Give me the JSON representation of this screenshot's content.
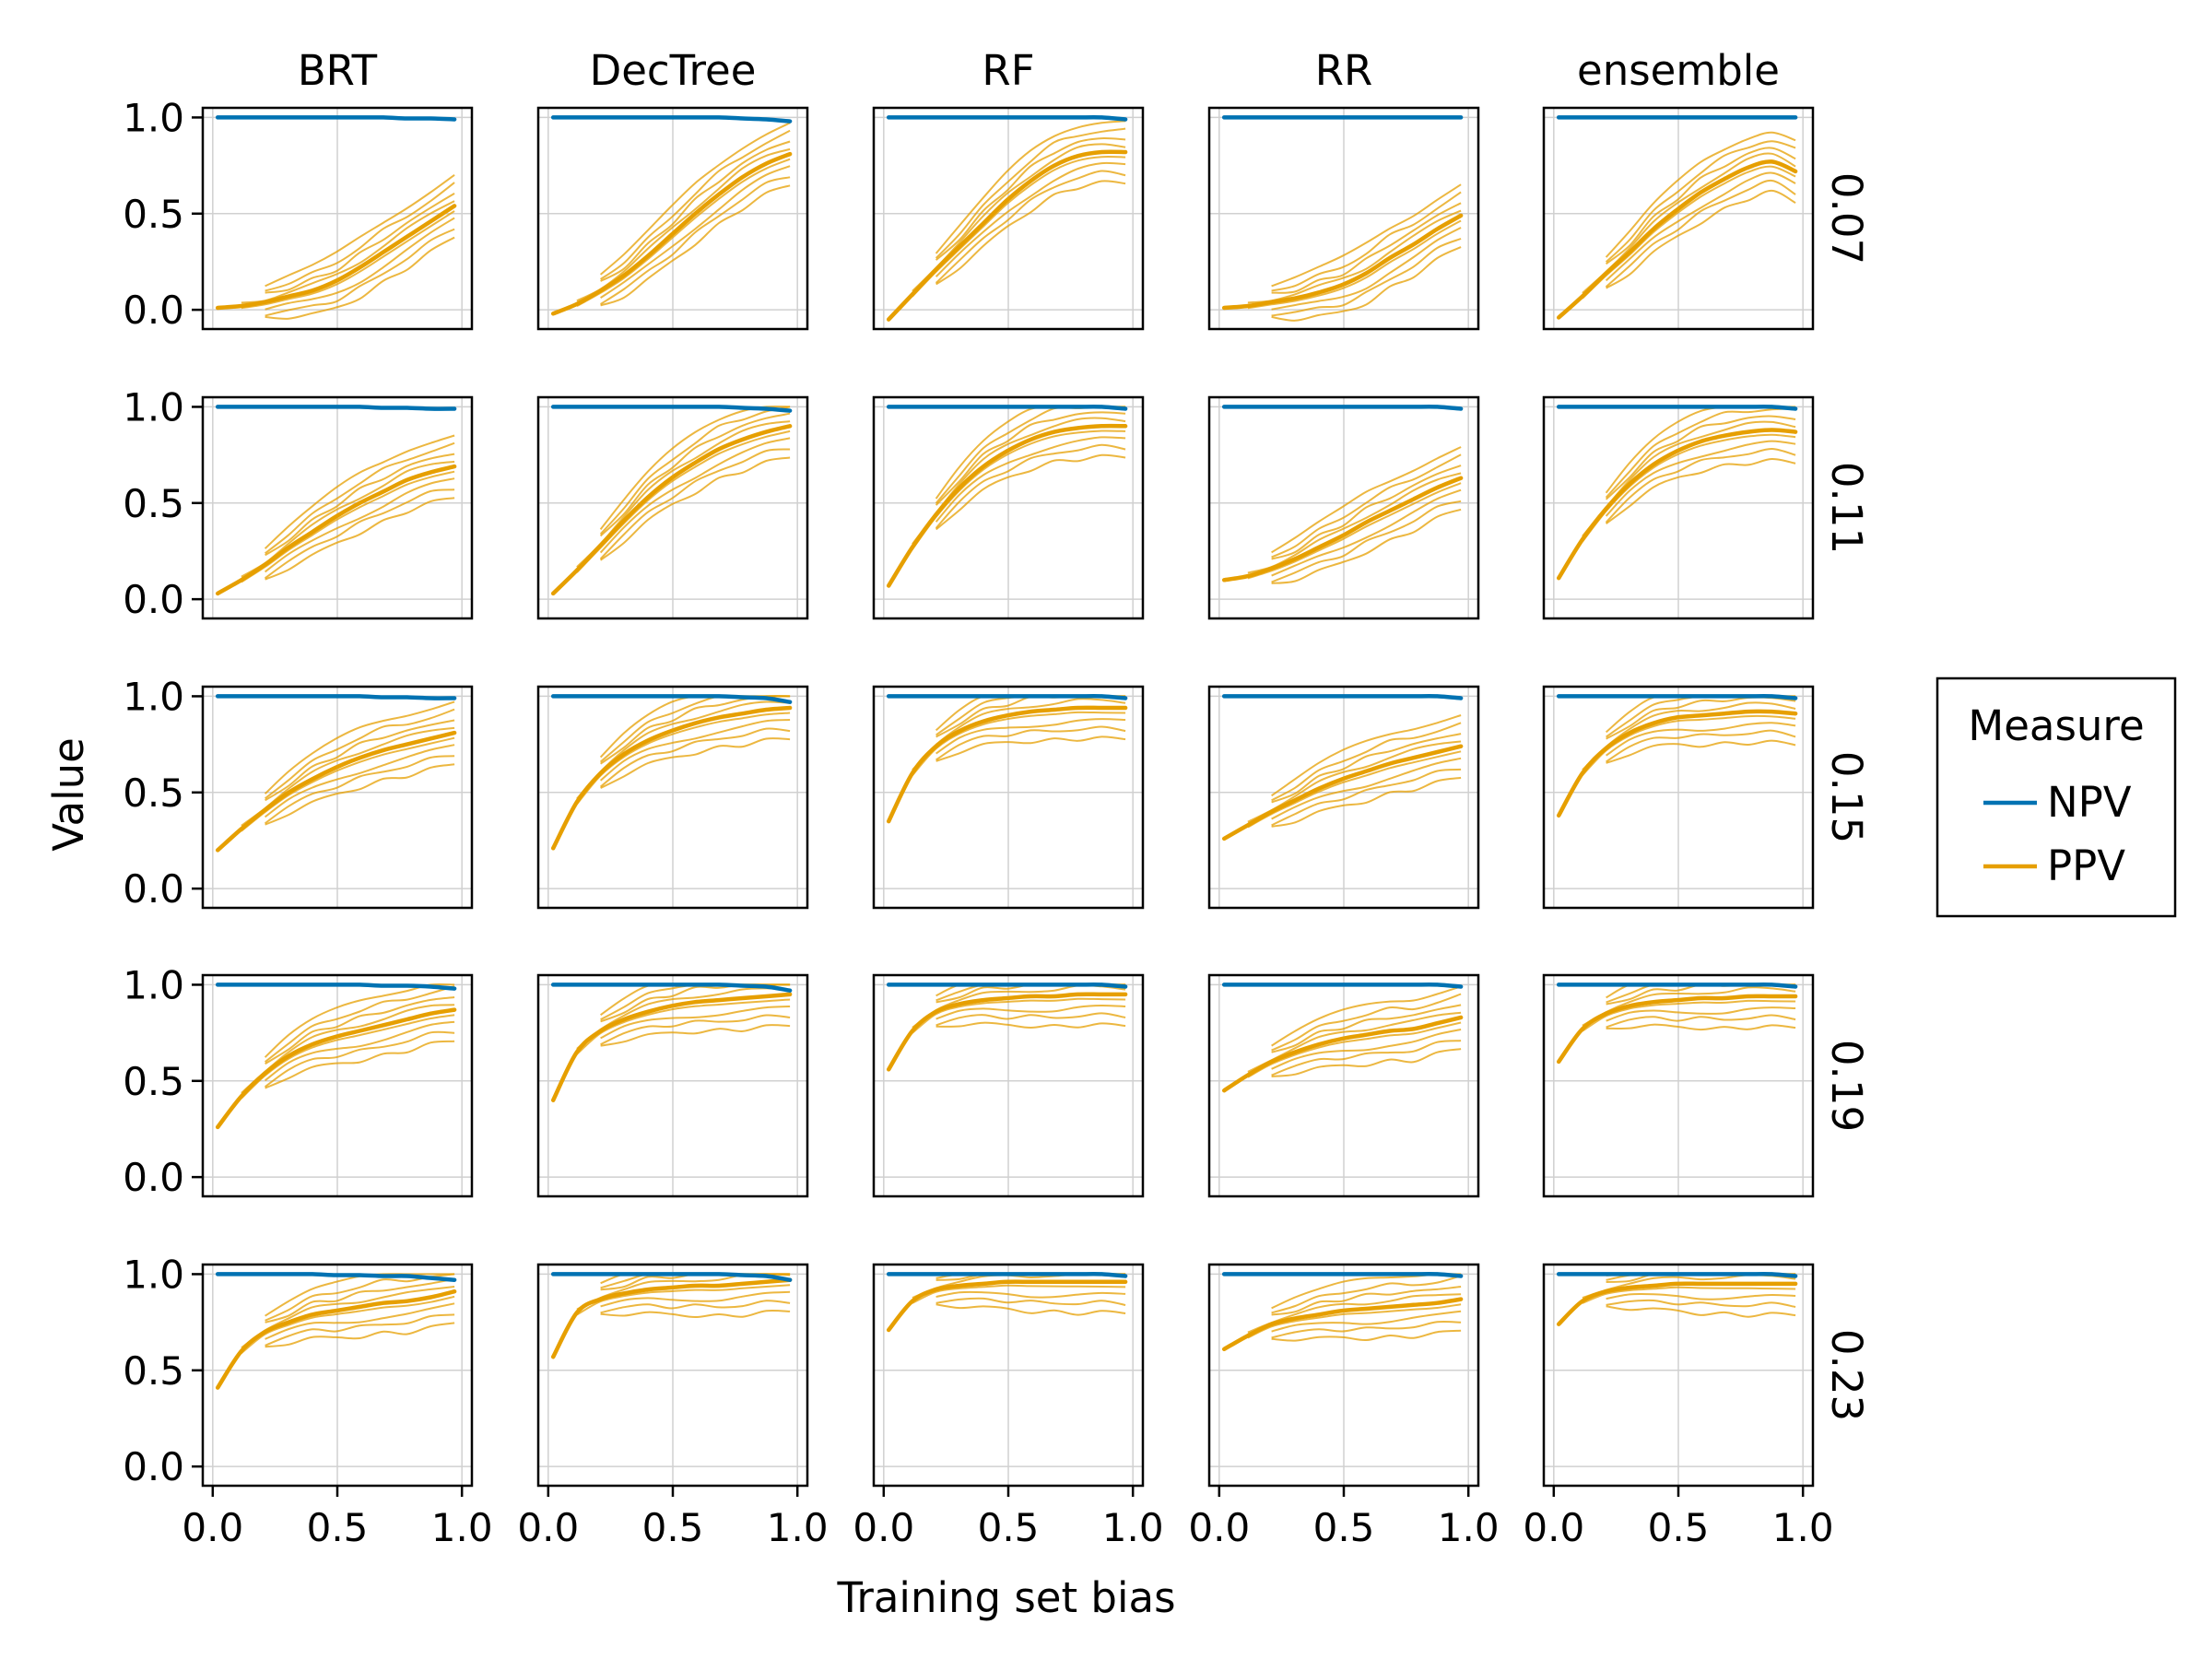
{
  "chart_data": {
    "type": "line",
    "description_free": true,
    "facet_columns": [
      "BRT",
      "DecTree",
      "RF",
      "RR",
      "ensemble"
    ],
    "facet_rows": [
      "0.07",
      "0.11",
      "0.15",
      "0.19",
      "0.23"
    ],
    "xlabel": "Training set bias",
    "ylabel": "Value",
    "xlim": [
      0.0,
      1.0
    ],
    "ylim": [
      0.0,
      1.0
    ],
    "xticks": [
      "0.0",
      "0.5",
      "1.0"
    ],
    "yticks": [
      "0.0",
      "0.5",
      "1.0"
    ],
    "grid": true,
    "legend": {
      "title": "Measure",
      "placement": "right",
      "entries": [
        {
          "name": "NPV",
          "color": "#0072b2"
        },
        {
          "name": "PPV",
          "color": "#e69f00"
        }
      ]
    },
    "x": [
      0.0,
      0.1,
      0.2,
      0.3,
      0.4,
      0.5,
      0.6,
      0.7,
      0.8,
      0.9,
      1.0
    ],
    "panels": [
      {
        "row": "0.07",
        "col": "BRT",
        "npv": [
          1.0,
          1.0,
          1.0,
          1.0,
          1.0,
          1.0,
          1.0,
          1.0,
          0.995,
          0.995,
          0.99
        ],
        "ppv": [
          0.01,
          0.02,
          0.04,
          0.07,
          0.1,
          0.15,
          0.22,
          0.3,
          0.38,
          0.46,
          0.54
        ]
      },
      {
        "row": "0.07",
        "col": "DecTree",
        "npv": [
          1.0,
          1.0,
          1.0,
          1.0,
          1.0,
          1.0,
          1.0,
          1.0,
          0.995,
          0.99,
          0.98
        ],
        "ppv": [
          -0.02,
          0.03,
          0.1,
          0.18,
          0.28,
          0.39,
          0.5,
          0.6,
          0.69,
          0.76,
          0.81
        ]
      },
      {
        "row": "0.07",
        "col": "RF",
        "npv": [
          1.0,
          1.0,
          1.0,
          1.0,
          1.0,
          1.0,
          1.0,
          1.0,
          1.0,
          1.0,
          0.99
        ],
        "ppv": [
          -0.05,
          0.08,
          0.21,
          0.33,
          0.45,
          0.57,
          0.67,
          0.75,
          0.8,
          0.82,
          0.82
        ]
      },
      {
        "row": "0.07",
        "col": "RR",
        "npv": [
          1.0,
          1.0,
          1.0,
          1.0,
          1.0,
          1.0,
          1.0,
          1.0,
          1.0,
          1.0,
          1.0
        ],
        "ppv": [
          0.01,
          0.02,
          0.04,
          0.06,
          0.09,
          0.13,
          0.19,
          0.27,
          0.34,
          0.42,
          0.49
        ]
      },
      {
        "row": "0.07",
        "col": "ensemble",
        "npv": [
          1.0,
          1.0,
          1.0,
          1.0,
          1.0,
          1.0,
          1.0,
          1.0,
          1.0,
          1.0,
          1.0
        ],
        "ppv": [
          -0.04,
          0.07,
          0.19,
          0.3,
          0.42,
          0.52,
          0.61,
          0.68,
          0.74,
          0.77,
          0.72
        ]
      },
      {
        "row": "0.11",
        "col": "BRT",
        "npv": [
          1.0,
          1.0,
          1.0,
          1.0,
          1.0,
          1.0,
          1.0,
          0.995,
          0.995,
          0.99,
          0.99
        ],
        "ppv": [
          0.03,
          0.1,
          0.18,
          0.27,
          0.35,
          0.43,
          0.5,
          0.56,
          0.62,
          0.66,
          0.69
        ]
      },
      {
        "row": "0.11",
        "col": "DecTree",
        "npv": [
          1.0,
          1.0,
          1.0,
          1.0,
          1.0,
          1.0,
          1.0,
          1.0,
          0.995,
          0.99,
          0.98
        ],
        "ppv": [
          0.03,
          0.15,
          0.28,
          0.41,
          0.53,
          0.63,
          0.71,
          0.78,
          0.83,
          0.87,
          0.9
        ]
      },
      {
        "row": "0.11",
        "col": "RF",
        "npv": [
          1.0,
          1.0,
          1.0,
          1.0,
          1.0,
          1.0,
          1.0,
          1.0,
          1.0,
          1.0,
          0.99
        ],
        "ppv": [
          0.07,
          0.27,
          0.44,
          0.58,
          0.69,
          0.77,
          0.83,
          0.87,
          0.89,
          0.9,
          0.9
        ]
      },
      {
        "row": "0.11",
        "col": "RR",
        "npv": [
          1.0,
          1.0,
          1.0,
          1.0,
          1.0,
          1.0,
          1.0,
          1.0,
          1.0,
          1.0,
          0.99
        ],
        "ppv": [
          0.1,
          0.12,
          0.16,
          0.21,
          0.27,
          0.33,
          0.4,
          0.46,
          0.52,
          0.58,
          0.63
        ]
      },
      {
        "row": "0.11",
        "col": "ensemble",
        "npv": [
          1.0,
          1.0,
          1.0,
          1.0,
          1.0,
          1.0,
          1.0,
          1.0,
          1.0,
          1.0,
          0.99
        ],
        "ppv": [
          0.11,
          0.31,
          0.47,
          0.6,
          0.7,
          0.77,
          0.82,
          0.85,
          0.87,
          0.88,
          0.87
        ]
      },
      {
        "row": "0.15",
        "col": "BRT",
        "npv": [
          1.0,
          1.0,
          1.0,
          1.0,
          1.0,
          1.0,
          1.0,
          0.995,
          0.995,
          0.99,
          0.99
        ],
        "ppv": [
          0.2,
          0.31,
          0.41,
          0.5,
          0.57,
          0.63,
          0.68,
          0.72,
          0.75,
          0.78,
          0.81
        ]
      },
      {
        "row": "0.15",
        "col": "DecTree",
        "npv": [
          1.0,
          1.0,
          1.0,
          1.0,
          1.0,
          1.0,
          1.0,
          1.0,
          0.995,
          0.99,
          0.97
        ],
        "ppv": [
          0.21,
          0.45,
          0.6,
          0.7,
          0.77,
          0.82,
          0.86,
          0.89,
          0.91,
          0.93,
          0.94
        ]
      },
      {
        "row": "0.15",
        "col": "RF",
        "npv": [
          1.0,
          1.0,
          1.0,
          1.0,
          1.0,
          1.0,
          1.0,
          1.0,
          1.0,
          1.0,
          0.99
        ],
        "ppv": [
          0.35,
          0.6,
          0.74,
          0.82,
          0.87,
          0.9,
          0.92,
          0.93,
          0.94,
          0.94,
          0.94
        ]
      },
      {
        "row": "0.15",
        "col": "RR",
        "npv": [
          1.0,
          1.0,
          1.0,
          1.0,
          1.0,
          1.0,
          1.0,
          1.0,
          1.0,
          1.0,
          0.99
        ],
        "ppv": [
          0.26,
          0.33,
          0.4,
          0.46,
          0.52,
          0.57,
          0.61,
          0.65,
          0.68,
          0.71,
          0.74
        ]
      },
      {
        "row": "0.15",
        "col": "ensemble",
        "npv": [
          1.0,
          1.0,
          1.0,
          1.0,
          1.0,
          1.0,
          1.0,
          1.0,
          1.0,
          1.0,
          0.99
        ],
        "ppv": [
          0.38,
          0.6,
          0.73,
          0.81,
          0.86,
          0.89,
          0.9,
          0.91,
          0.92,
          0.92,
          0.91
        ]
      },
      {
        "row": "0.19",
        "col": "BRT",
        "npv": [
          1.0,
          1.0,
          1.0,
          1.0,
          1.0,
          1.0,
          1.0,
          0.995,
          0.995,
          0.99,
          0.98
        ],
        "ppv": [
          0.26,
          0.42,
          0.54,
          0.63,
          0.69,
          0.73,
          0.76,
          0.79,
          0.82,
          0.85,
          0.87
        ]
      },
      {
        "row": "0.19",
        "col": "DecTree",
        "npv": [
          1.0,
          1.0,
          1.0,
          1.0,
          1.0,
          1.0,
          1.0,
          1.0,
          0.995,
          0.99,
          0.97
        ],
        "ppv": [
          0.4,
          0.65,
          0.76,
          0.82,
          0.86,
          0.89,
          0.91,
          0.92,
          0.93,
          0.94,
          0.95
        ]
      },
      {
        "row": "0.19",
        "col": "RF",
        "npv": [
          1.0,
          1.0,
          1.0,
          1.0,
          1.0,
          1.0,
          1.0,
          1.0,
          1.0,
          1.0,
          0.99
        ],
        "ppv": [
          0.56,
          0.76,
          0.86,
          0.9,
          0.92,
          0.93,
          0.94,
          0.94,
          0.95,
          0.95,
          0.95
        ]
      },
      {
        "row": "0.19",
        "col": "RR",
        "npv": [
          1.0,
          1.0,
          1.0,
          1.0,
          1.0,
          1.0,
          1.0,
          1.0,
          1.0,
          1.0,
          0.99
        ],
        "ppv": [
          0.45,
          0.53,
          0.6,
          0.65,
          0.69,
          0.72,
          0.74,
          0.76,
          0.77,
          0.8,
          0.83
        ]
      },
      {
        "row": "0.19",
        "col": "ensemble",
        "npv": [
          1.0,
          1.0,
          1.0,
          1.0,
          1.0,
          1.0,
          1.0,
          1.0,
          1.0,
          1.0,
          0.99
        ],
        "ppv": [
          0.6,
          0.77,
          0.85,
          0.89,
          0.91,
          0.92,
          0.93,
          0.93,
          0.94,
          0.94,
          0.94
        ]
      },
      {
        "row": "0.23",
        "col": "BRT",
        "npv": [
          1.0,
          1.0,
          1.0,
          1.0,
          1.0,
          0.995,
          0.995,
          0.99,
          0.99,
          0.98,
          0.97
        ],
        "ppv": [
          0.41,
          0.6,
          0.7,
          0.75,
          0.79,
          0.81,
          0.83,
          0.85,
          0.86,
          0.88,
          0.91
        ]
      },
      {
        "row": "0.23",
        "col": "DecTree",
        "npv": [
          1.0,
          1.0,
          1.0,
          1.0,
          1.0,
          1.0,
          1.0,
          1.0,
          0.995,
          0.99,
          0.97
        ],
        "ppv": [
          0.57,
          0.8,
          0.87,
          0.9,
          0.92,
          0.93,
          0.94,
          0.94,
          0.95,
          0.96,
          0.97
        ]
      },
      {
        "row": "0.23",
        "col": "RF",
        "npv": [
          1.0,
          1.0,
          1.0,
          1.0,
          1.0,
          1.0,
          1.0,
          1.0,
          1.0,
          1.0,
          0.99
        ],
        "ppv": [
          0.71,
          0.86,
          0.92,
          0.94,
          0.95,
          0.96,
          0.96,
          0.96,
          0.96,
          0.96,
          0.96
        ]
      },
      {
        "row": "0.23",
        "col": "RR",
        "npv": [
          1.0,
          1.0,
          1.0,
          1.0,
          1.0,
          1.0,
          1.0,
          1.0,
          1.0,
          1.0,
          0.99
        ],
        "ppv": [
          0.61,
          0.68,
          0.74,
          0.77,
          0.79,
          0.81,
          0.82,
          0.83,
          0.84,
          0.85,
          0.87
        ]
      },
      {
        "row": "0.23",
        "col": "ensemble",
        "npv": [
          1.0,
          1.0,
          1.0,
          1.0,
          1.0,
          1.0,
          1.0,
          1.0,
          1.0,
          1.0,
          0.99
        ],
        "ppv": [
          0.74,
          0.86,
          0.91,
          0.93,
          0.94,
          0.95,
          0.95,
          0.95,
          0.95,
          0.95,
          0.95
        ]
      }
    ]
  }
}
